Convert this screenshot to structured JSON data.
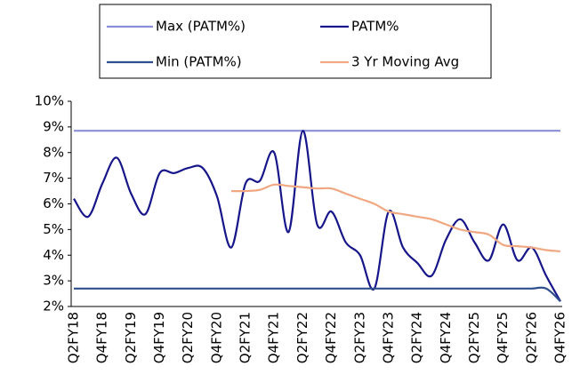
{
  "chart_data": {
    "type": "line",
    "categories": [
      "Q2FY18",
      null,
      "Q4FY18",
      null,
      "Q2FY19",
      null,
      "Q4FY19",
      null,
      "Q2FY20",
      null,
      "Q4FY20",
      null,
      "Q2FY21",
      null,
      "Q4FY21",
      null,
      "Q2FY22",
      null,
      "Q4FY22",
      null,
      "Q2FY23",
      null,
      "Q4FY23",
      null,
      "Q2FY24",
      null,
      "Q4FY24",
      null,
      "Q2FY25",
      null,
      "Q4FY25",
      null,
      "Q2FY26",
      null,
      "Q4FY26"
    ],
    "series": [
      {
        "name": "Max (PATM%)",
        "color": "#8b8fd8",
        "values": [
          8.85,
          8.85,
          8.85,
          8.85,
          8.85,
          8.85,
          8.85,
          8.85,
          8.85,
          8.85,
          8.85,
          8.85,
          8.85,
          8.85,
          8.85,
          8.85,
          8.85,
          8.85,
          8.85,
          8.85,
          8.85,
          8.85,
          8.85,
          8.85,
          8.85,
          8.85,
          8.85,
          8.85,
          8.85,
          8.85,
          8.85,
          8.85,
          8.85,
          8.85,
          8.85
        ]
      },
      {
        "name": "PATM%",
        "color": "#16168a",
        "values": [
          6.2,
          5.5,
          6.8,
          7.8,
          6.4,
          5.6,
          7.2,
          7.2,
          7.4,
          7.4,
          6.3,
          4.3,
          6.8,
          6.9,
          8.0,
          4.9,
          8.85,
          5.2,
          5.7,
          4.5,
          4.0,
          2.7,
          5.7,
          4.3,
          3.7,
          3.2,
          4.6,
          5.4,
          4.5,
          3.8,
          5.2,
          3.8,
          4.3,
          3.2,
          2.2
        ]
      },
      {
        "name": "Min (PATM%)",
        "color": "#2f4f8f",
        "values": [
          2.7,
          2.7,
          2.7,
          2.7,
          2.7,
          2.7,
          2.7,
          2.7,
          2.7,
          2.7,
          2.7,
          2.7,
          2.7,
          2.7,
          2.7,
          2.7,
          2.7,
          2.7,
          2.7,
          2.7,
          2.7,
          2.7,
          2.7,
          2.7,
          2.7,
          2.7,
          2.7,
          2.7,
          2.7,
          2.7,
          2.7,
          2.7,
          2.7,
          2.7,
          2.2
        ]
      },
      {
        "name": "3 Yr Moving Avg",
        "color": "#f0a882",
        "values": [
          null,
          null,
          null,
          null,
          null,
          null,
          null,
          null,
          null,
          null,
          null,
          6.5,
          6.5,
          6.55,
          6.75,
          6.7,
          6.65,
          6.6,
          6.6,
          6.4,
          6.2,
          6.0,
          5.7,
          5.6,
          5.5,
          5.4,
          5.2,
          5.0,
          4.9,
          4.8,
          4.4,
          4.35,
          4.3,
          4.2,
          4.15
        ]
      }
    ],
    "ylim": [
      2,
      10
    ],
    "yticks": [
      {
        "value": 2,
        "label": "2%"
      },
      {
        "value": 3,
        "label": "3%"
      },
      {
        "value": 4,
        "label": "4%"
      },
      {
        "value": 5,
        "label": "5%"
      },
      {
        "value": 6,
        "label": "6%"
      },
      {
        "value": 7,
        "label": "7%"
      },
      {
        "value": 8,
        "label": "8%"
      },
      {
        "value": 9,
        "label": "9%"
      },
      {
        "value": 10,
        "label": "10%"
      }
    ]
  }
}
